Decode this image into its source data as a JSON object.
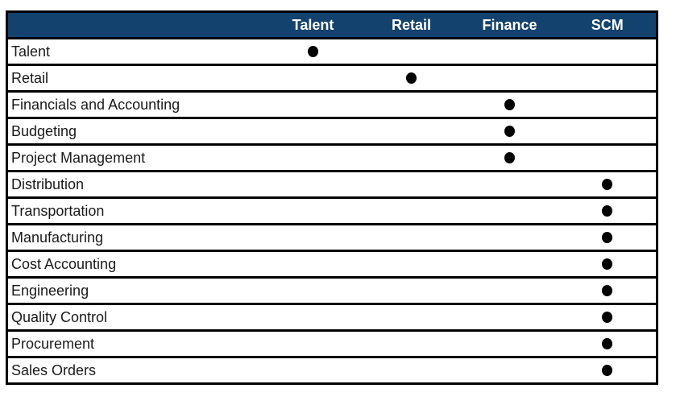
{
  "table": {
    "row_header_label": "",
    "columns": [
      "Talent",
      "Retail",
      "Finance",
      "SCM"
    ],
    "rows": [
      {
        "label": "Talent",
        "marked": "Talent"
      },
      {
        "label": "Retail",
        "marked": "Retail"
      },
      {
        "label": "Financials and Accounting",
        "marked": "Finance"
      },
      {
        "label": "Budgeting",
        "marked": "Finance"
      },
      {
        "label": "Project Management",
        "marked": "Finance"
      },
      {
        "label": "Distribution",
        "marked": "SCM"
      },
      {
        "label": "Transportation",
        "marked": "SCM"
      },
      {
        "label": "Manufacturing",
        "marked": "SCM"
      },
      {
        "label": "Cost Accounting",
        "marked": "SCM"
      },
      {
        "label": "Engineering",
        "marked": "SCM"
      },
      {
        "label": "Quality Control",
        "marked": "SCM"
      },
      {
        "label": "Procurement",
        "marked": "SCM"
      },
      {
        "label": "Sales Orders",
        "marked": "SCM"
      }
    ],
    "dot_icon": "filled-circle"
  },
  "colors": {
    "header_bg": "#14426e",
    "header_text": "#ffffff",
    "row_text": "#1a1a1a",
    "border": "#000000",
    "dot": "#000000"
  }
}
